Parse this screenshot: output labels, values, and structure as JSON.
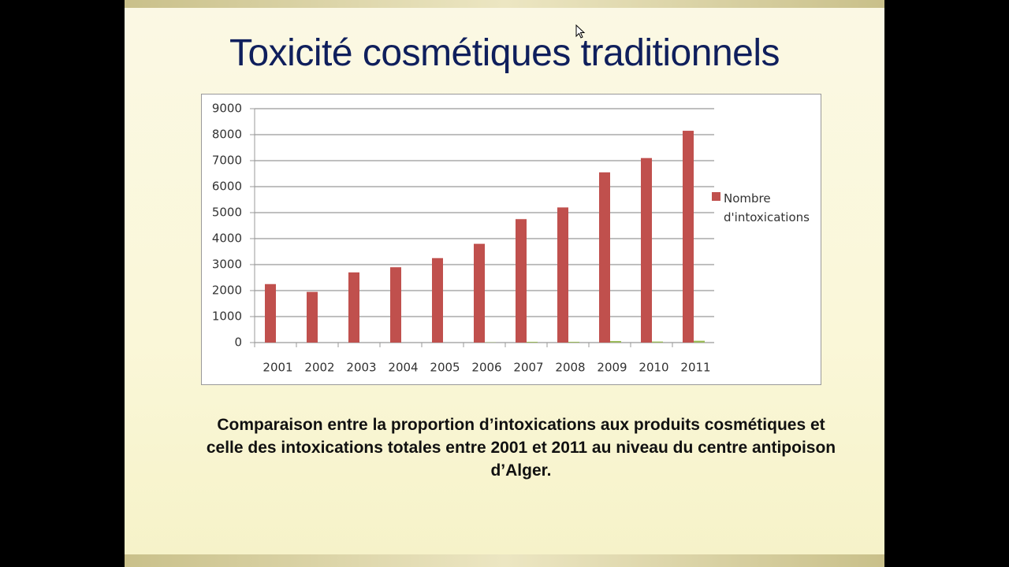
{
  "slide": {
    "title": "Toxicité cosmétiques traditionnels",
    "caption": [
      "Comparaison entre la proportion d’intoxications aux produits cosmétiques et celle des intoxications totales entre 2001 et 2011 au niveau du centre antipoison",
      "d’Alger."
    ]
  },
  "chart_data": {
    "type": "bar",
    "categories": [
      "2001",
      "2002",
      "2003",
      "2004",
      "2005",
      "2006",
      "2007",
      "2008",
      "2009",
      "2010",
      "2011"
    ],
    "series": [
      {
        "name": "Nombre d'intoxications",
        "color": "#c0504d",
        "values": [
          2250,
          1950,
          2700,
          2900,
          3250,
          3800,
          4750,
          5200,
          6550,
          7100,
          8150
        ]
      },
      {
        "color": "#9bbb59",
        "values": [
          0,
          0,
          0,
          0,
          0,
          10,
          30,
          30,
          60,
          40,
          70
        ]
      }
    ],
    "ylim": [
      0,
      9000
    ],
    "yticks": [
      0,
      1000,
      2000,
      3000,
      4000,
      5000,
      6000,
      7000,
      8000,
      9000
    ],
    "grid": true,
    "legend": "right"
  }
}
